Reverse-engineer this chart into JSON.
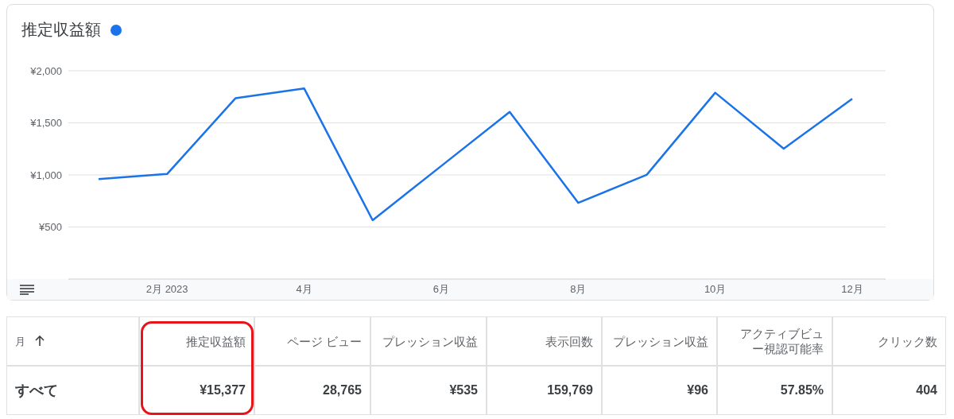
{
  "chart_data": [
    {
      "type": "line",
      "categories": [
        null,
        "2月 2023",
        null,
        "4月",
        null,
        "6月",
        null,
        "8月",
        null,
        "10月",
        null,
        "12月"
      ],
      "series": [
        {
          "name": "推定収益額",
          "color": "#1a73e8",
          "values": [
            960,
            1009,
            1737,
            1831,
            565,
            1085,
            1605,
            732,
            1001,
            1789,
            1252,
            1731
          ]
        }
      ],
      "ylim": [
        0,
        2000
      ],
      "yticks": [
        {
          "value": 500,
          "label": "¥500"
        },
        {
          "value": 1000,
          "label": "¥1,000"
        },
        {
          "value": 1500,
          "label": "¥1,500"
        },
        {
          "value": 2000,
          "label": "¥2,000"
        }
      ],
      "grid": "y",
      "legend": "top left",
      "marker": "none"
    },
    {
      "type": "other",
      "categories": [
        "月",
        "推定収益額",
        "ページ ビュー",
        "プレッション収益",
        "表示回数",
        "プレッション収益",
        "アクティブビュー視認可能率",
        "クリック数"
      ],
      "value_labels": [
        "すべて",
        "¥15,377",
        "28,765",
        "¥535",
        "159,769",
        "¥96",
        "57.85%",
        "404"
      ]
    }
  ]
}
